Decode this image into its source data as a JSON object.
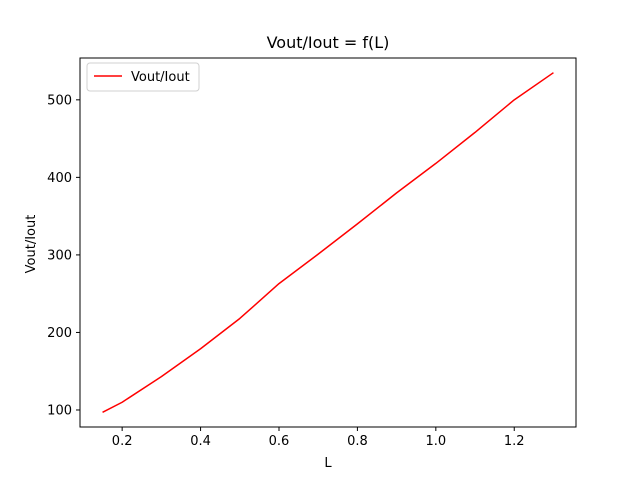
{
  "chart_data": {
    "type": "line",
    "title": "Vout/Iout = f(L)",
    "xlabel": "L",
    "ylabel": "Vout/Iout",
    "xlim": [
      0.0925,
      1.3575
    ],
    "ylim": [
      78.05,
      553.95
    ],
    "xticks": [
      0.2,
      0.4,
      0.6,
      0.8,
      1.0,
      1.2
    ],
    "xtick_labels": [
      "0.2",
      "0.4",
      "0.6",
      "0.8",
      "1.0",
      "1.2"
    ],
    "yticks": [
      100,
      200,
      300,
      400,
      500
    ],
    "ytick_labels": [
      "100",
      "200",
      "300",
      "400",
      "500"
    ],
    "grid": false,
    "legend": {
      "placement": "top-left"
    },
    "series": [
      {
        "name": "Vout/Iout",
        "color": "#ff0000",
        "x": [
          0.15,
          0.2,
          0.3,
          0.4,
          0.5,
          0.6,
          0.7,
          0.8,
          0.9,
          1.0,
          1.1,
          1.2,
          1.3
        ],
        "y": [
          97,
          110,
          143,
          179,
          218,
          263,
          301,
          340,
          380,
          418,
          458,
          500,
          535
        ]
      }
    ]
  }
}
